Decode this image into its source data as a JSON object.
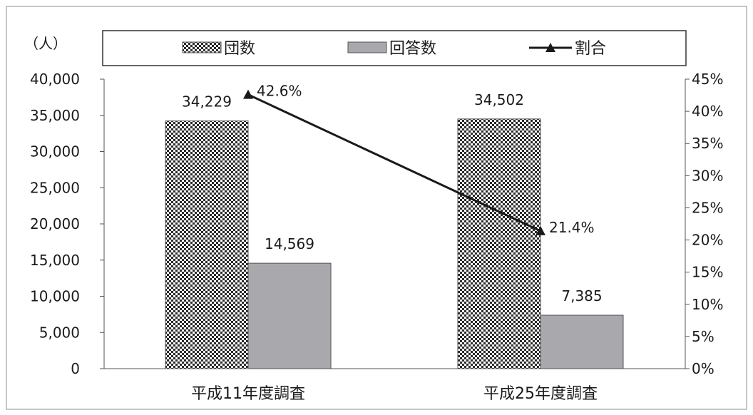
{
  "chart_data": {
    "type": "bar",
    "unit_label": "（人）",
    "categories": [
      "平成11年度調査",
      "平成25年度調査"
    ],
    "series": [
      {
        "name": "団数",
        "type": "bar",
        "values": [
          34229,
          34502
        ],
        "value_labels": [
          "34,229",
          "34,502"
        ],
        "pattern": "checker",
        "color": "#2b2b2b"
      },
      {
        "name": "回答数",
        "type": "bar",
        "values": [
          14569,
          7385
        ],
        "value_labels": [
          "14,569",
          "7,385"
        ],
        "color": "#a8a8ad"
      },
      {
        "name": "割合",
        "type": "line",
        "axis": "right",
        "values": [
          42.6,
          21.4
        ],
        "value_labels": [
          "42.6%",
          "21.4%"
        ],
        "color": "#1a1a1a"
      }
    ],
    "y_left": {
      "min": 0,
      "max": 40000,
      "step": 5000,
      "tick_labels": [
        "0",
        "5,000",
        "10,000",
        "15,000",
        "20,000",
        "25,000",
        "30,000",
        "35,000",
        "40,000"
      ]
    },
    "y_right": {
      "min": 0,
      "max": 45,
      "step": 5,
      "tick_labels": [
        "0%",
        "5%",
        "10%",
        "15%",
        "20%",
        "25%",
        "30%",
        "35%",
        "40%",
        "45%"
      ]
    },
    "legend_position": "top",
    "grid": false
  }
}
